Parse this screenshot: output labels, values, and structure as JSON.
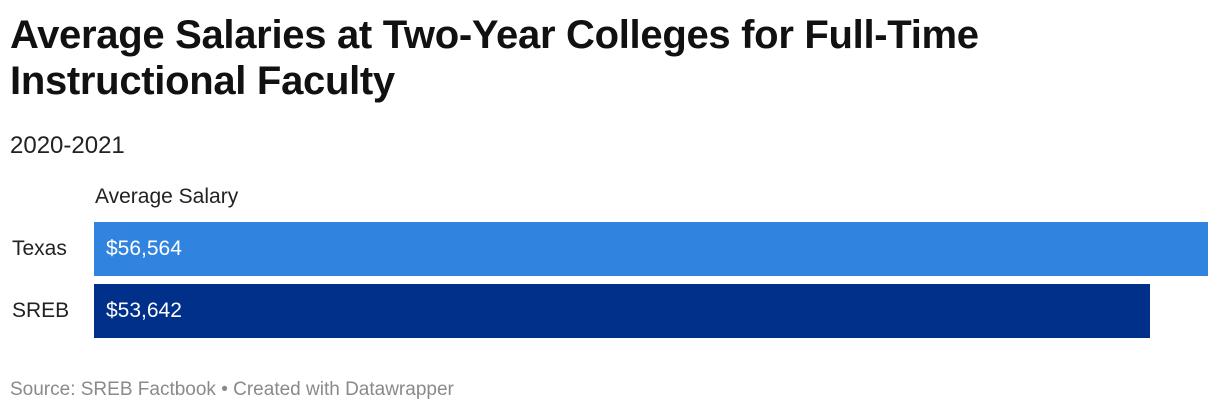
{
  "header": {
    "title": "Average Salaries at Two-Year Colleges for Full-Time Instructional Faculty",
    "subtitle": "2020-2021"
  },
  "chart_data": {
    "type": "bar",
    "orientation": "horizontal",
    "column_header": "Average Salary",
    "categories": [
      "Texas",
      "SREB"
    ],
    "values": [
      56564,
      53642
    ],
    "value_labels": [
      "$56,564",
      "$53,642"
    ],
    "colors": [
      "#3183e0",
      "#00308a"
    ],
    "xlim": [
      0,
      56564
    ],
    "grid": false
  },
  "footer": {
    "source": "Source: SREB Factbook • Created with Datawrapper"
  }
}
